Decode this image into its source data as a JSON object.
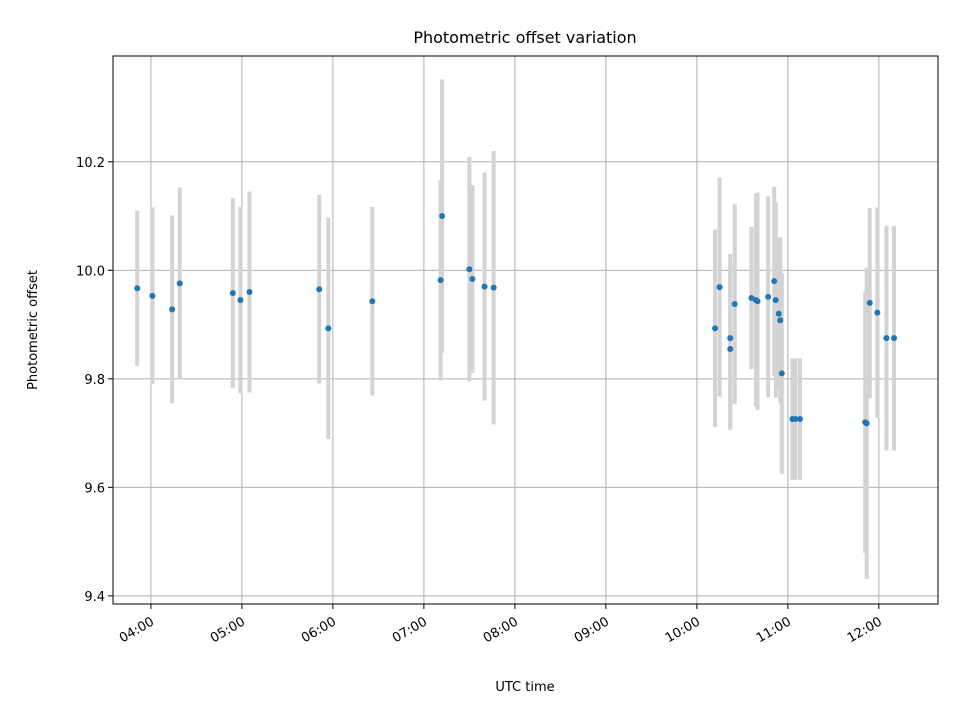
{
  "chart_data": {
    "type": "scatter",
    "title": "Photometric offset variation",
    "xlabel": "UTC time",
    "ylabel": "Photometric offset",
    "x_ticks": [
      "04:00",
      "05:00",
      "06:00",
      "07:00",
      "08:00",
      "09:00",
      "10:00",
      "11:00",
      "12:00"
    ],
    "y_ticks": [
      "9.4",
      "9.6",
      "9.8",
      "10.0",
      "10.2"
    ],
    "xlim": [
      "03:35",
      "12:39"
    ],
    "ylim": [
      9.385,
      10.395
    ],
    "grid": true,
    "colors": {
      "point": "#1f77b4",
      "errorbar": "#d3d3d3",
      "grid": "#b0b0b0"
    },
    "points": [
      {
        "t": "03:51",
        "y": 9.967,
        "err": 0.143
      },
      {
        "t": "04:01",
        "y": 9.953,
        "err": 0.163
      },
      {
        "t": "04:14",
        "y": 9.928,
        "err": 0.173
      },
      {
        "t": "04:19",
        "y": 9.976,
        "err": 0.177
      },
      {
        "t": "04:54",
        "y": 9.958,
        "err": 0.175
      },
      {
        "t": "04:59",
        "y": 9.945,
        "err": 0.172
      },
      {
        "t": "05:05",
        "y": 9.96,
        "err": 0.185
      },
      {
        "t": "05:51",
        "y": 9.965,
        "err": 0.174
      },
      {
        "t": "05:57",
        "y": 9.893,
        "err": 0.204
      },
      {
        "t": "06:26",
        "y": 9.943,
        "err": 0.174
      },
      {
        "t": "07:11",
        "y": 9.982,
        "err": 0.185
      },
      {
        "t": "07:12",
        "y": 10.1,
        "err": 0.252
      },
      {
        "t": "07:30",
        "y": 10.002,
        "err": 0.207
      },
      {
        "t": "07:32",
        "y": 9.984,
        "err": 0.173
      },
      {
        "t": "07:40",
        "y": 9.97,
        "err": 0.21
      },
      {
        "t": "07:46",
        "y": 9.968,
        "err": 0.252
      },
      {
        "t": "10:12",
        "y": 9.893,
        "err": 0.182
      },
      {
        "t": "10:15",
        "y": 9.969,
        "err": 0.202
      },
      {
        "t": "10:22",
        "y": 9.875,
        "err": 0.155
      },
      {
        "t": "10:22",
        "y": 9.855,
        "err": 0.149
      },
      {
        "t": "10:25",
        "y": 9.938,
        "err": 0.184
      },
      {
        "t": "10:36",
        "y": 9.949,
        "err": 0.131
      },
      {
        "t": "10:39",
        "y": 9.945,
        "err": 0.196
      },
      {
        "t": "10:40",
        "y": 9.943,
        "err": 0.2
      },
      {
        "t": "10:47",
        "y": 9.951,
        "err": 0.185
      },
      {
        "t": "10:51",
        "y": 9.98,
        "err": 0.174
      },
      {
        "t": "10:52",
        "y": 9.945,
        "err": 0.18
      },
      {
        "t": "10:54",
        "y": 9.92,
        "err": 0.138
      },
      {
        "t": "10:55",
        "y": 9.908,
        "err": 0.153
      },
      {
        "t": "10:56",
        "y": 9.81,
        "err": 0.185
      },
      {
        "t": "11:03",
        "y": 9.726,
        "err": 0.112
      },
      {
        "t": "11:05",
        "y": 9.726,
        "err": 0.112
      },
      {
        "t": "11:08",
        "y": 9.726,
        "err": 0.112
      },
      {
        "t": "11:51",
        "y": 9.72,
        "err": 0.241
      },
      {
        "t": "11:52",
        "y": 9.718,
        "err": 0.287
      },
      {
        "t": "11:54",
        "y": 9.94,
        "err": 0.175
      },
      {
        "t": "11:59",
        "y": 9.922,
        "err": 0.194
      },
      {
        "t": "12:05",
        "y": 9.875,
        "err": 0.207
      },
      {
        "t": "12:10",
        "y": 9.875,
        "err": 0.207
      }
    ]
  }
}
